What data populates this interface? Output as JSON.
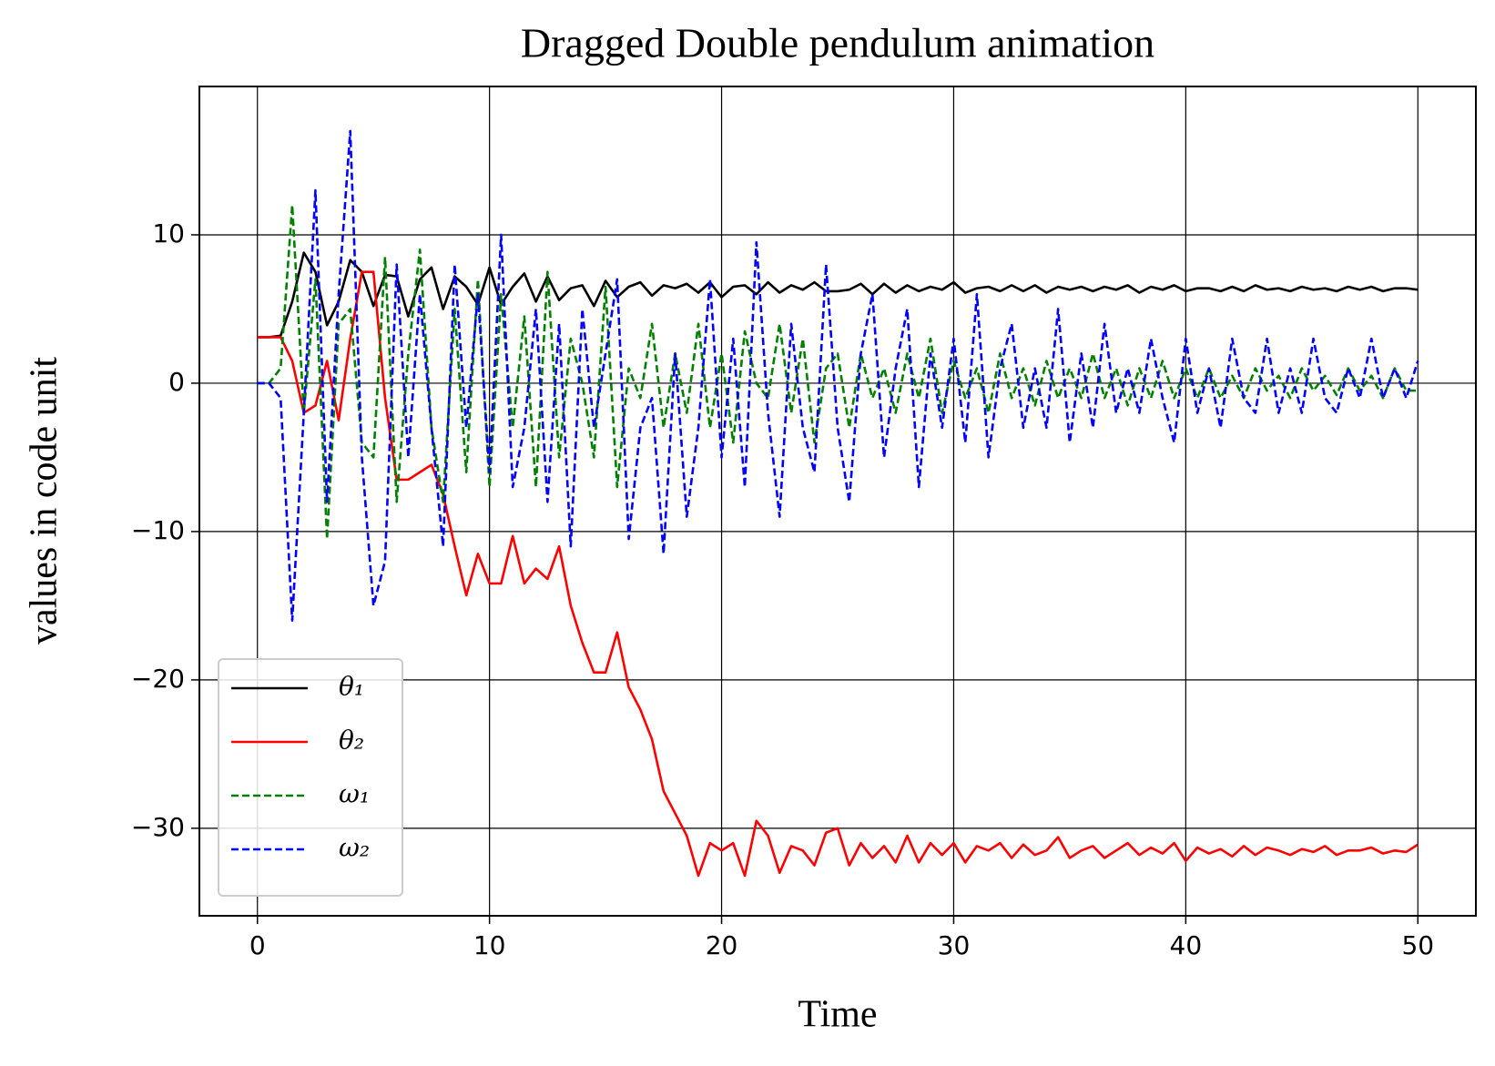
{
  "chart_data": {
    "type": "line",
    "title": "Dragged Double pendulum animation",
    "x_label": "Time",
    "y_label": "values in code unit",
    "xlim": [
      -2.5,
      52.5
    ],
    "ylim": [
      -35.9,
      20
    ],
    "xticks": [
      0,
      10,
      20,
      30,
      40,
      50
    ],
    "yticks": [
      {
        "value": -30,
        "label": "−30"
      },
      {
        "value": -20,
        "label": "−20"
      },
      {
        "value": -10,
        "label": "−10"
      },
      0,
      10
    ],
    "grid": true,
    "legend": "lower left",
    "x": [
      0,
      0.5,
      1,
      1.5,
      2,
      2.5,
      3,
      3.5,
      4,
      4.5,
      5,
      5.5,
      6,
      6.5,
      7,
      7.5,
      8,
      8.5,
      9,
      9.5,
      10,
      10.5,
      11,
      11.5,
      12,
      12.5,
      13,
      13.5,
      14,
      14.5,
      15,
      15.5,
      16,
      16.5,
      17,
      17.5,
      18,
      18.5,
      19,
      19.5,
      20,
      20.5,
      21,
      21.5,
      22,
      22.5,
      23,
      23.5,
      24,
      24.5,
      25,
      25.5,
      26,
      26.5,
      27,
      27.5,
      28,
      28.5,
      29,
      29.5,
      30,
      30.5,
      31,
      31.5,
      32,
      32.5,
      33,
      33.5,
      34,
      34.5,
      35,
      35.5,
      36,
      36.5,
      37,
      37.5,
      38,
      38.5,
      39,
      39.5,
      40,
      40.5,
      41,
      41.5,
      42,
      42.5,
      43,
      43.5,
      44,
      44.5,
      45,
      45.5,
      46,
      46.5,
      47,
      47.5,
      48,
      48.5,
      49,
      49.5,
      50
    ],
    "series": [
      {
        "name": "θ₁",
        "color": "#000000",
        "dash": false,
        "values": [
          3.1,
          3.1,
          3.2,
          5.5,
          8.8,
          7.5,
          3.9,
          5.5,
          8.3,
          7.5,
          5.2,
          7.3,
          7.2,
          4.5,
          7.0,
          7.8,
          5.0,
          7.2,
          6.5,
          5.3,
          7.8,
          5.3,
          6.5,
          7.4,
          5.5,
          7.2,
          5.6,
          6.4,
          6.6,
          5.2,
          6.9,
          5.8,
          6.5,
          6.8,
          5.9,
          6.6,
          6.4,
          6.7,
          6.1,
          6.8,
          5.8,
          6.5,
          6.6,
          6.0,
          6.8,
          6.1,
          6.6,
          6.3,
          6.8,
          6.2,
          6.2,
          6.3,
          6.7,
          6.0,
          6.7,
          6.1,
          6.6,
          6.2,
          6.5,
          6.3,
          6.8,
          6.1,
          6.4,
          6.5,
          6.2,
          6.6,
          6.2,
          6.6,
          6.1,
          6.5,
          6.3,
          6.5,
          6.2,
          6.5,
          6.3,
          6.6,
          6.1,
          6.5,
          6.3,
          6.6,
          6.2,
          6.4,
          6.4,
          6.2,
          6.5,
          6.2,
          6.6,
          6.3,
          6.4,
          6.2,
          6.5,
          6.3,
          6.4,
          6.2,
          6.5,
          6.3,
          6.5,
          6.2,
          6.4,
          6.4,
          6.3
        ]
      },
      {
        "name": "θ₂",
        "color": "#ff0000",
        "dash": false,
        "values": [
          3.1,
          3.1,
          3.1,
          1.5,
          -2.0,
          -1.5,
          1.5,
          -2.5,
          3,
          7.5,
          7.5,
          -1,
          -6.5,
          -6.5,
          -6.0,
          -5.5,
          -7.5,
          -11,
          -14.3,
          -11.5,
          -13.5,
          -13.5,
          -10.3,
          -13.5,
          -12.5,
          -13.2,
          -11,
          -15,
          -17.5,
          -19.5,
          -19.5,
          -16.8,
          -20.5,
          -22,
          -24,
          -27.5,
          -29,
          -30.5,
          -33.2,
          -31,
          -31.5,
          -31,
          -33.2,
          -29.5,
          -30.5,
          -33,
          -31.2,
          -31.5,
          -32.5,
          -30.3,
          -30,
          -32.5,
          -31,
          -32,
          -31.2,
          -32.3,
          -30.5,
          -32.3,
          -31,
          -31.8,
          -31,
          -32.3,
          -31.2,
          -31.5,
          -31,
          -32,
          -31.1,
          -31.8,
          -31.5,
          -30.6,
          -32,
          -31.5,
          -31.2,
          -32,
          -31.5,
          -31,
          -31.8,
          -31.3,
          -31.7,
          -31,
          -32.2,
          -31.3,
          -31.7,
          -31.4,
          -31.9,
          -31.2,
          -31.8,
          -31.3,
          -31.5,
          -31.8,
          -31.4,
          -31.6,
          -31.2,
          -31.8,
          -31.5,
          -31.5,
          -31.3,
          -31.7,
          -31.5,
          -31.6,
          -31.1
        ]
      },
      {
        "name": "ω₁",
        "color": "#008000",
        "dash": true,
        "values": [
          0,
          0,
          1,
          12,
          -2,
          7,
          -10.5,
          4,
          5,
          -4,
          -5,
          8.5,
          -8,
          2,
          9,
          -3,
          -8,
          5,
          -6,
          7,
          -7,
          6,
          -3,
          4.5,
          -7,
          7.5,
          -5,
          3,
          0,
          -5,
          6.5,
          -7,
          1,
          -1,
          4,
          -3,
          2,
          -2,
          4,
          -3,
          2,
          -4,
          3.5,
          0,
          -1,
          4,
          -2,
          3,
          -4,
          1,
          2,
          -3,
          2,
          -1,
          1,
          -2,
          2,
          -1,
          3,
          -2,
          1.5,
          -1,
          1,
          -2,
          2,
          -1,
          1,
          -1.5,
          1.5,
          -1,
          1,
          -1,
          2,
          -1,
          1,
          -1.5,
          1,
          -1,
          1.5,
          -1,
          1,
          -1,
          1,
          -1,
          0.5,
          -1,
          1,
          -0.5,
          0.5,
          -1,
          1,
          -0.5,
          0.5,
          -0.8,
          1,
          -0.5,
          0.5,
          -1,
          1,
          -0.5,
          -0.5
        ]
      },
      {
        "name": "ω₂",
        "color": "#0000ff",
        "dash": true,
        "values": [
          0,
          0,
          -1,
          -16,
          -2,
          13,
          -8,
          6,
          17,
          -5,
          -15,
          -12,
          8,
          -5,
          6,
          -3,
          -11,
          8,
          -3,
          6,
          -6,
          10,
          -7,
          -3,
          5,
          -8,
          4,
          -11,
          5,
          -3,
          2,
          7,
          -10.5,
          -3,
          -1,
          -11.5,
          2,
          -9,
          -3,
          7,
          -5,
          3,
          -7,
          9.5,
          -2,
          -9,
          4,
          -3,
          -6,
          8,
          -3,
          -8,
          2,
          6,
          -5,
          1,
          5,
          -7,
          2,
          -3,
          3,
          -4,
          6,
          -5,
          1,
          4,
          -3,
          1,
          -3,
          5,
          -4,
          2,
          -3,
          4,
          -2,
          1,
          -2,
          3,
          -1,
          -4,
          3,
          -2,
          1,
          -3,
          3,
          -1,
          -2,
          3,
          -2,
          1,
          -2,
          3,
          -1,
          -2,
          1,
          -1,
          3,
          -1,
          1,
          -1,
          1.5
        ]
      }
    ]
  }
}
